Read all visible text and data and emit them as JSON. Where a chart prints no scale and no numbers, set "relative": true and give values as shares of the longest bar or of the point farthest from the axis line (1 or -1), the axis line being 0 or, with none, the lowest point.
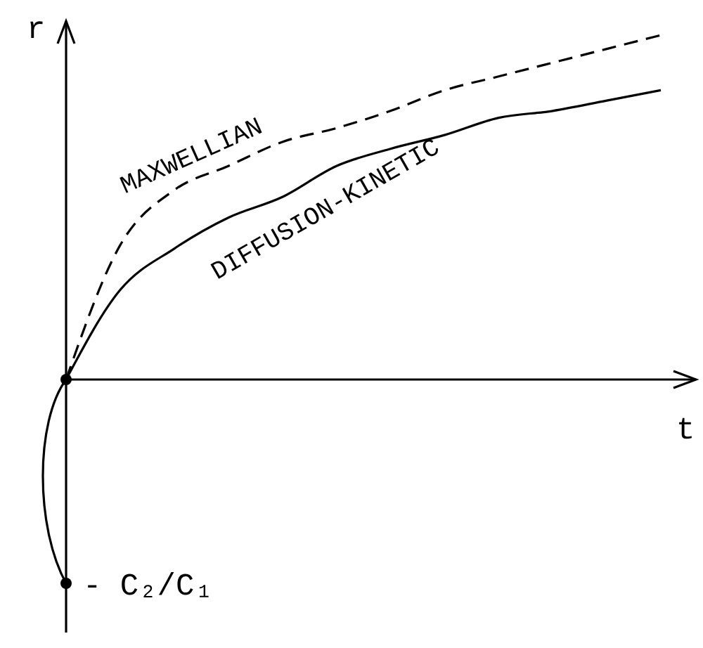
{
  "chart_data": {
    "type": "line",
    "relative": true,
    "xlabel": "t",
    "ylabel": "r",
    "categories": [
      null,
      null,
      null,
      null,
      null,
      null,
      null,
      null,
      null,
      null,
      null,
      null
    ],
    "marker": "none",
    "series": [
      {
        "name": "MAXWELLIAN",
        "color": "#000000",
        "line_style": "dashed",
        "values": [
          0,
          0.39,
          0.55,
          0.62,
          0.69,
          0.73,
          0.78,
          0.84,
          0.88,
          0.92,
          0.96,
          1.0
        ]
      },
      {
        "name": "DIFFUSION-KINETIC",
        "color": "#000000",
        "line_style": "solid",
        "values": [
          0,
          0.26,
          0.38,
          0.47,
          0.53,
          0.62,
          0.67,
          0.71,
          0.76,
          0.78,
          0.81,
          0.84
        ]
      }
    ],
    "annotations": [
      "- C₂/C₁"
    ]
  }
}
